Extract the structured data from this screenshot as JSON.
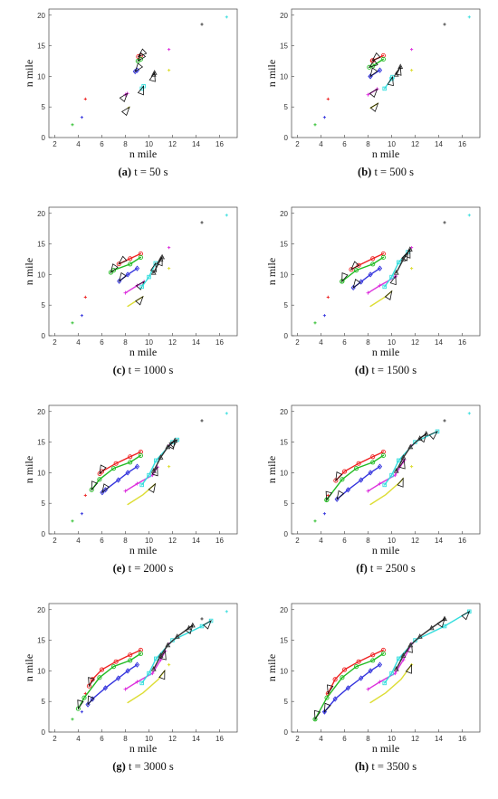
{
  "figure": {
    "panels": [
      {
        "letter": "(a)",
        "caption": "t = 50 s"
      },
      {
        "letter": "(b)",
        "caption": "t = 500 s"
      },
      {
        "letter": "(c)",
        "caption": "t = 1000 s"
      },
      {
        "letter": "(d)",
        "caption": "t = 1500 s"
      },
      {
        "letter": "(e)",
        "caption": "t = 2000 s"
      },
      {
        "letter": "(f)",
        "caption": "t = 2500 s"
      },
      {
        "letter": "(g)",
        "caption": "t = 3000 s"
      },
      {
        "letter": "(h)",
        "caption": "t = 3500 s"
      }
    ]
  },
  "chart_data": {
    "type": "line",
    "xlabel": "n mile",
    "ylabel": "n mile",
    "xlim": [
      1.5,
      17.5
    ],
    "ylim": [
      0,
      21
    ],
    "xticks": [
      2,
      4,
      6,
      8,
      10,
      12,
      14,
      16
    ],
    "yticks": [
      0,
      5,
      10,
      15,
      20
    ],
    "grid": false,
    "targets": [
      {
        "color": "#22bb22",
        "x": 3.5,
        "y": 2.1
      },
      {
        "color": "#3333dd",
        "x": 4.3,
        "y": 3.3
      },
      {
        "color": "#ee2222",
        "x": 4.6,
        "y": 6.3
      },
      {
        "color": "#dddd33",
        "x": 11.7,
        "y": 11.0
      },
      {
        "color": "#dd33dd",
        "x": 11.7,
        "y": 14.4
      },
      {
        "color": "#333333",
        "x": 14.5,
        "y": 18.5
      },
      {
        "color": "#33dddd",
        "x": 16.6,
        "y": 19.7
      }
    ],
    "series": [
      {
        "color": "#ee2222",
        "marker": "circle",
        "x": [
          9.3,
          8.4,
          7.2,
          6.0,
          5.2,
          4.6
        ],
        "y": [
          13.4,
          12.6,
          11.5,
          10.2,
          8.6,
          6.3
        ]
      },
      {
        "color": "#22bb22",
        "marker": "circle",
        "x": [
          9.3,
          8.4,
          7.0,
          5.8,
          4.5,
          3.5
        ],
        "y": [
          12.8,
          11.7,
          10.7,
          8.9,
          5.6,
          2.1
        ]
      },
      {
        "color": "#3333dd",
        "marker": "diamond",
        "x": [
          9.0,
          8.2,
          7.4,
          6.3,
          5.2,
          4.3
        ],
        "y": [
          11.0,
          10.0,
          8.8,
          7.2,
          5.4,
          3.3
        ]
      },
      {
        "color": "#dd33dd",
        "marker": "plus",
        "x": [
          8.0,
          9.0,
          10.3,
          11.0,
          11.7
        ],
        "y": [
          7.0,
          8.2,
          9.6,
          11.8,
          14.4
        ]
      },
      {
        "color": "#33dddd",
        "marker": "square",
        "x": [
          9.4,
          10.0,
          10.6,
          12.0,
          14.5,
          16.6
        ],
        "y": [
          8.0,
          9.6,
          12.0,
          15.0,
          17.3,
          19.7
        ]
      },
      {
        "color": "#dddd33",
        "marker": "none",
        "x": [
          8.2,
          9.5,
          10.8,
          11.7
        ],
        "y": [
          4.8,
          6.4,
          8.6,
          11.0
        ]
      },
      {
        "color": "#333333",
        "marker": "triangle",
        "x": [
          10.4,
          11.0,
          11.6,
          12.4,
          13.4,
          14.5
        ],
        "y": [
          10.3,
          12.5,
          14.2,
          15.6,
          17.0,
          18.5
        ]
      }
    ]
  }
}
